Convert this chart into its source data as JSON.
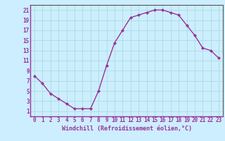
{
  "x": [
    0,
    1,
    2,
    3,
    4,
    5,
    6,
    7,
    8,
    9,
    10,
    11,
    12,
    13,
    14,
    15,
    16,
    17,
    18,
    19,
    20,
    21,
    22,
    23
  ],
  "y": [
    8,
    6.5,
    4.5,
    3.5,
    2.5,
    1.5,
    1.5,
    1.5,
    5,
    10,
    14.5,
    17,
    19.5,
    20,
    20.5,
    21,
    21,
    20.5,
    20,
    18,
    16,
    13.5,
    13,
    11.5
  ],
  "line_color": "#993399",
  "marker": "D",
  "markersize": 2,
  "linewidth": 1,
  "bg_color": "#cceeff",
  "grid_color": "#aadddd",
  "xlabel": "Windchill (Refroidissement éolien,°C)",
  "xlabel_color": "#993399",
  "tick_color": "#993399",
  "ylim": [
    0,
    22
  ],
  "xlim": [
    -0.5,
    23.5
  ],
  "yticks": [
    1,
    3,
    5,
    7,
    9,
    11,
    13,
    15,
    17,
    19,
    21
  ],
  "xticks": [
    0,
    1,
    2,
    3,
    4,
    5,
    6,
    7,
    8,
    9,
    10,
    11,
    12,
    13,
    14,
    15,
    16,
    17,
    18,
    19,
    20,
    21,
    22,
    23
  ],
  "xtick_labels": [
    "0",
    "1",
    "2",
    "3",
    "4",
    "5",
    "6",
    "7",
    "8",
    "9",
    "10",
    "11",
    "12",
    "13",
    "14",
    "15",
    "16",
    "17",
    "18",
    "19",
    "20",
    "21",
    "22",
    "23"
  ],
  "ytick_labels": [
    "1",
    "3",
    "5",
    "7",
    "9",
    "11",
    "13",
    "15",
    "17",
    "19",
    "21"
  ]
}
